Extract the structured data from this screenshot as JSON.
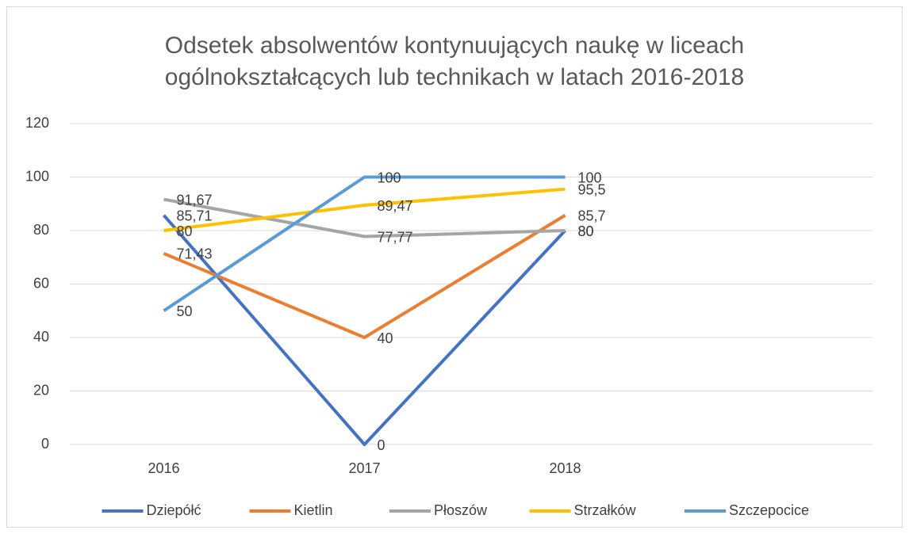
{
  "chart_data": {
    "type": "line",
    "title": "Odsetek absolwentów kontynuujących naukę w liceach ogólnokształcących lub technikach w latach 2016-2018",
    "categories": [
      "2016",
      "2017",
      "2018",
      null
    ],
    "series": [
      {
        "name": "Dziepółć",
        "color": "#4472c4",
        "values": [
          85.71,
          0,
          80,
          null
        ],
        "value_labels": [
          "85,71",
          "0",
          "80",
          null
        ]
      },
      {
        "name": "Kietlin",
        "color": "#ed7d31",
        "values": [
          71.43,
          40,
          85.7,
          null
        ],
        "value_labels": [
          "71,43",
          "40",
          "85,7",
          null
        ]
      },
      {
        "name": "Płoszów",
        "color": "#a5a5a5",
        "values": [
          91.67,
          77.77,
          80,
          null
        ],
        "value_labels": [
          "91,67",
          "77,77",
          "80",
          null
        ]
      },
      {
        "name": "Strzałków",
        "color": "#ffc000",
        "values": [
          80,
          89.47,
          95.5,
          null
        ],
        "value_labels": [
          "80",
          "89,47",
          "95,5",
          null
        ]
      },
      {
        "name": "Szczepocice",
        "color": "#5b9bd5",
        "values": [
          50,
          100,
          100,
          null
        ],
        "value_labels": [
          "50",
          "100",
          "100",
          null
        ]
      }
    ],
    "ylim": [
      0,
      120
    ],
    "yticks": [
      0,
      20,
      40,
      60,
      80,
      100,
      120
    ],
    "grid": true,
    "legend": "bottom"
  }
}
